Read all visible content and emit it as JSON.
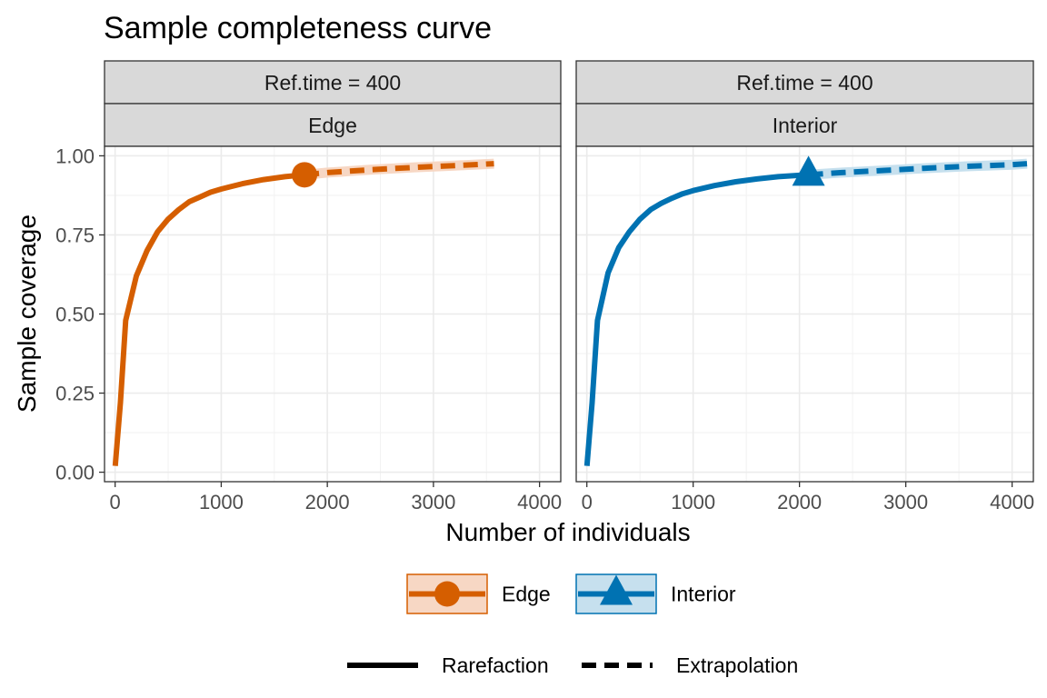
{
  "chart_data": {
    "type": "line",
    "title": "Sample completeness curve",
    "xlabel": "Number of individuals",
    "ylabel": "Sample coverage",
    "xlim": [
      -100,
      4200
    ],
    "ylim": [
      -0.03,
      1.03
    ],
    "x_ticks": [
      0,
      1000,
      2000,
      3000,
      4000
    ],
    "x_tick_labels": [
      "0",
      "1000",
      "2000",
      "3000",
      "4000"
    ],
    "y_ticks": [
      0,
      0.25,
      0.5,
      0.75,
      1
    ],
    "y_tick_labels": [
      "0.00",
      "0.25",
      "0.50",
      "0.75",
      "1.00"
    ],
    "grid": true,
    "legend_position": "bottom",
    "panels": [
      {
        "strip_top": "Ref.time = 400",
        "strip_bottom": "Edge",
        "series": "Edge",
        "color": "#D55E00",
        "fill": "#F7D7C4",
        "marker": "circle",
        "reference": {
          "x": 1785,
          "y": 0.94
        },
        "rarefaction": [
          [
            1,
            0.02
          ],
          [
            50,
            0.22
          ],
          [
            100,
            0.48
          ],
          [
            200,
            0.62
          ],
          [
            300,
            0.7
          ],
          [
            400,
            0.76
          ],
          [
            500,
            0.8
          ],
          [
            600,
            0.83
          ],
          [
            700,
            0.855
          ],
          [
            800,
            0.87
          ],
          [
            900,
            0.885
          ],
          [
            1000,
            0.895
          ],
          [
            1200,
            0.912
          ],
          [
            1400,
            0.925
          ],
          [
            1600,
            0.934
          ],
          [
            1785,
            0.94
          ]
        ],
        "extrapolation": [
          [
            1785,
            0.94
          ],
          [
            2000,
            0.947
          ],
          [
            2400,
            0.956
          ],
          [
            2800,
            0.963
          ],
          [
            3200,
            0.969
          ],
          [
            3570,
            0.975
          ]
        ]
      },
      {
        "strip_top": "Ref.time = 400",
        "strip_bottom": "Interior",
        "series": "Interior",
        "color": "#0072B2",
        "fill": "#C6E0EE",
        "marker": "triangle",
        "reference": {
          "x": 2085,
          "y": 0.94
        },
        "rarefaction": [
          [
            1,
            0.02
          ],
          [
            50,
            0.22
          ],
          [
            100,
            0.48
          ],
          [
            200,
            0.63
          ],
          [
            300,
            0.71
          ],
          [
            400,
            0.76
          ],
          [
            500,
            0.8
          ],
          [
            600,
            0.83
          ],
          [
            700,
            0.85
          ],
          [
            800,
            0.866
          ],
          [
            900,
            0.88
          ],
          [
            1000,
            0.89
          ],
          [
            1200,
            0.906
          ],
          [
            1400,
            0.918
          ],
          [
            1600,
            0.927
          ],
          [
            1800,
            0.934
          ],
          [
            2085,
            0.94
          ]
        ],
        "extrapolation": [
          [
            2085,
            0.94
          ],
          [
            2400,
            0.947
          ],
          [
            2800,
            0.954
          ],
          [
            3200,
            0.961
          ],
          [
            3600,
            0.967
          ],
          [
            4000,
            0.972
          ],
          [
            4140,
            0.975
          ]
        ]
      }
    ],
    "legend": {
      "colors": [
        {
          "label": "Edge",
          "color": "#D55E00",
          "fill": "#F7D7C4",
          "marker": "circle"
        },
        {
          "label": "Interior",
          "color": "#0072B2",
          "fill": "#C6E0EE",
          "marker": "triangle"
        }
      ],
      "linetypes": [
        {
          "label": "Rarefaction",
          "style": "solid"
        },
        {
          "label": "Extrapolation",
          "style": "dashed"
        }
      ]
    }
  }
}
